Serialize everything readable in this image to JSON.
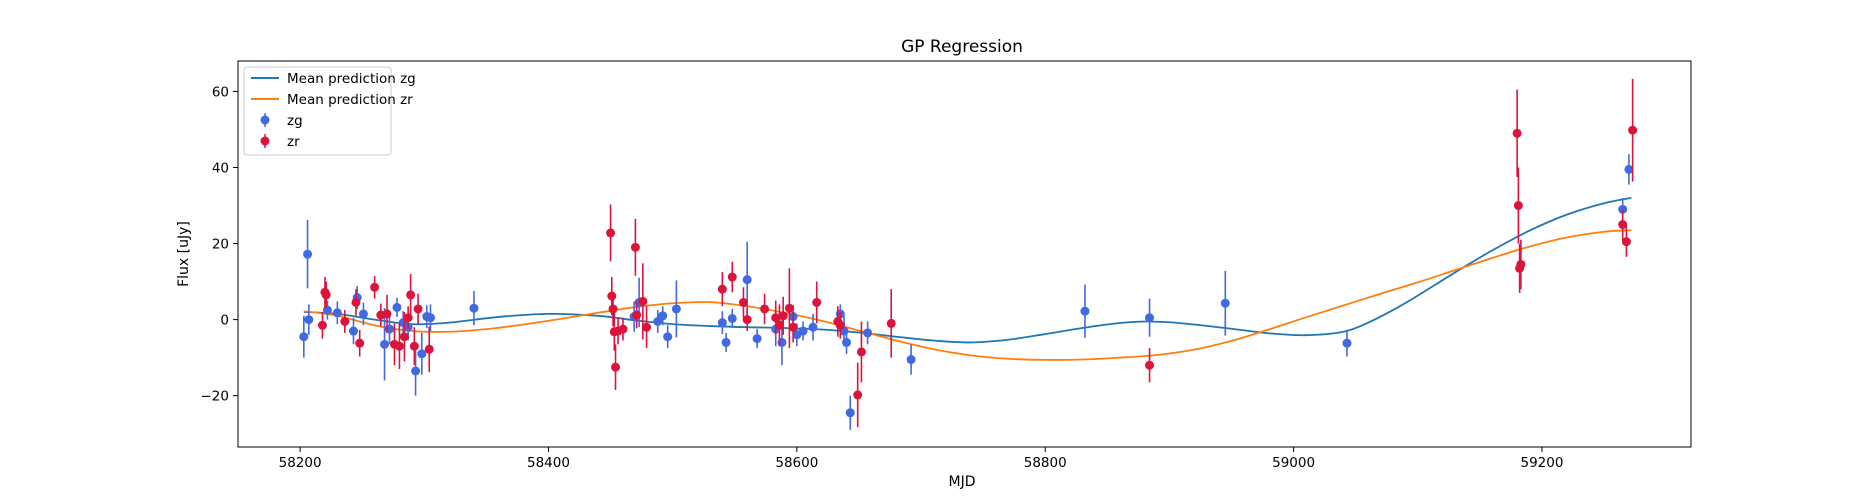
{
  "chart_data": {
    "type": "scatter",
    "title": "GP Regression",
    "xlabel": "MJD",
    "ylabel": "Flux [uJy]",
    "xlim": [
      58150,
      59320
    ],
    "ylim": [
      -33.5,
      68
    ],
    "xticks": [
      58200,
      58400,
      58600,
      58800,
      59000,
      59200
    ],
    "yticks": [
      -20,
      0,
      20,
      40,
      60
    ],
    "grid": false,
    "legend_position": "top-left",
    "lines": [
      {
        "name": "Mean prediction zg",
        "color": "#1f77b4",
        "x": [
          58203,
          58230,
          58260,
          58290,
          58320,
          58360,
          58400,
          58440,
          58470,
          58500,
          58530,
          58560,
          58590,
          58620,
          58650,
          58680,
          58710,
          58740,
          58770,
          58800,
          58830,
          58860,
          58880,
          58900,
          58920,
          58950,
          58980,
          59010,
          59040,
          59060,
          59080,
          59100,
          59130,
          59160,
          59190,
          59220,
          59250,
          59272
        ],
        "y": [
          2.0,
          1.5,
          0.0,
          -1.2,
          -0.8,
          0.7,
          1.5,
          1.0,
          -0.2,
          -1.2,
          -1.7,
          -2.0,
          -2.2,
          -2.6,
          -3.4,
          -4.5,
          -5.5,
          -6.0,
          -5.3,
          -3.8,
          -2.2,
          -0.9,
          -0.5,
          -0.7,
          -1.3,
          -2.4,
          -3.6,
          -4.1,
          -3.2,
          -0.8,
          2.5,
          6.3,
          12.4,
          18.2,
          23.4,
          27.6,
          30.6,
          32.0
        ]
      },
      {
        "name": "Mean prediction zr",
        "color": "#ff7f0e",
        "x": [
          58203,
          58230,
          58260,
          58290,
          58320,
          58350,
          58380,
          58410,
          58440,
          58470,
          58500,
          58530,
          58560,
          58590,
          58620,
          58650,
          58680,
          58710,
          58740,
          58770,
          58800,
          58830,
          58860,
          58890,
          58920,
          58950,
          58980,
          59010,
          59040,
          59070,
          59100,
          59130,
          59160,
          59190,
          59220,
          59250,
          59272
        ],
        "y": [
          2.2,
          1.0,
          -1.5,
          -3.0,
          -3.2,
          -2.5,
          -1.3,
          0.2,
          1.8,
          3.3,
          4.3,
          4.6,
          3.5,
          1.8,
          -0.3,
          -2.9,
          -5.5,
          -7.8,
          -9.4,
          -10.3,
          -10.6,
          -10.5,
          -10.0,
          -9.3,
          -7.9,
          -5.6,
          -2.6,
          0.6,
          3.7,
          6.8,
          9.8,
          13.0,
          16.2,
          19.2,
          21.6,
          23.1,
          23.5
        ]
      }
    ],
    "series": [
      {
        "name": "zg",
        "color": "#4169e1",
        "points": [
          [
            58203,
            -4.5,
            5.5
          ],
          [
            58206,
            17.2,
            9.0
          ],
          [
            58207,
            0.0,
            4.0
          ],
          [
            58222,
            2.5,
            2.5
          ],
          [
            58230,
            1.8,
            3.0
          ],
          [
            58243,
            -3.0,
            3.5
          ],
          [
            58246,
            5.8,
            3.0
          ],
          [
            58251,
            1.5,
            3.0
          ],
          [
            58268,
            -6.5,
            9.5
          ],
          [
            58272,
            -2.5,
            4.0
          ],
          [
            58278,
            3.2,
            2.5
          ],
          [
            58283,
            -0.8,
            3.0
          ],
          [
            58287,
            -2.0,
            3.5
          ],
          [
            58293,
            -13.5,
            6.5
          ],
          [
            58298,
            -9.0,
            5.5
          ],
          [
            58302,
            0.8,
            3.0
          ],
          [
            58305,
            0.5,
            3.5
          ],
          [
            58340,
            3.0,
            4.5
          ],
          [
            58469,
            0.8,
            4.0
          ],
          [
            58473,
            4.5,
            6.5
          ],
          [
            58488,
            -0.5,
            3.0
          ],
          [
            58492,
            1.0,
            2.5
          ],
          [
            58496,
            -4.5,
            3.0
          ],
          [
            58503,
            2.8,
            7.5
          ],
          [
            58540,
            -0.8,
            3.0
          ],
          [
            58543,
            -6.0,
            2.5
          ],
          [
            58548,
            0.3,
            2.5
          ],
          [
            58560,
            10.5,
            10.0
          ],
          [
            58568,
            -5.0,
            2.5
          ],
          [
            58583,
            -2.5,
            4.5
          ],
          [
            58588,
            -6.0,
            6.0
          ],
          [
            58597,
            0.8,
            3.0
          ],
          [
            58600,
            -4.0,
            3.0
          ],
          [
            58605,
            -3.0,
            2.5
          ],
          [
            58613,
            -2.0,
            3.5
          ],
          [
            58635,
            1.5,
            2.5
          ],
          [
            58638,
            -3.0,
            4.0
          ],
          [
            58640,
            -6.0,
            3.0
          ],
          [
            58643,
            -24.5,
            4.5
          ],
          [
            58657,
            -3.5,
            3.0
          ],
          [
            58692,
            -10.5,
            4.0
          ],
          [
            58832,
            2.2,
            7.0
          ],
          [
            58884,
            0.5,
            5.0
          ],
          [
            58945,
            4.3,
            8.5
          ],
          [
            59043,
            -6.2,
            3.5
          ],
          [
            59265,
            29.0,
            3.0
          ],
          [
            59270,
            39.5,
            4.0
          ]
        ]
      },
      {
        "name": "zr",
        "color": "#dc143c",
        "points": [
          [
            58218,
            -1.5,
            3.5
          ],
          [
            58220,
            7.2,
            4.0
          ],
          [
            58221,
            6.5,
            3.5
          ],
          [
            58236,
            -0.5,
            3.0
          ],
          [
            58245,
            4.5,
            3.5
          ],
          [
            58248,
            -6.2,
            3.5
          ],
          [
            58260,
            8.5,
            3.0
          ],
          [
            58265,
            1.2,
            3.0
          ],
          [
            58270,
            1.5,
            5.0
          ],
          [
            58276,
            -6.5,
            5.5
          ],
          [
            58280,
            -7.0,
            6.0
          ],
          [
            58284,
            -4.5,
            6.5
          ],
          [
            58287,
            0.5,
            3.0
          ],
          [
            58289,
            6.5,
            5.5
          ],
          [
            58292,
            -7.0,
            5.0
          ],
          [
            58295,
            2.8,
            4.0
          ],
          [
            58304,
            -7.8,
            6.0
          ],
          [
            58450,
            22.8,
            7.5
          ],
          [
            58451,
            6.2,
            5.0
          ],
          [
            58452,
            2.8,
            4.5
          ],
          [
            58453,
            -3.2,
            5.0
          ],
          [
            58454,
            -12.5,
            6.0
          ],
          [
            58456,
            -3.0,
            3.5
          ],
          [
            58460,
            -2.5,
            3.0
          ],
          [
            58470,
            19.0,
            7.5
          ],
          [
            58471,
            1.2,
            3.5
          ],
          [
            58476,
            4.8,
            10.0
          ],
          [
            58479,
            -2.0,
            5.5
          ],
          [
            58540,
            8.0,
            4.5
          ],
          [
            58548,
            11.2,
            4.0
          ],
          [
            58557,
            4.5,
            4.0
          ],
          [
            58560,
            0.0,
            3.0
          ],
          [
            58574,
            2.8,
            4.0
          ],
          [
            58583,
            0.5,
            4.5
          ],
          [
            58586,
            -1.5,
            5.5
          ],
          [
            58589,
            1.0,
            5.0
          ],
          [
            58594,
            3.0,
            10.5
          ],
          [
            58597,
            -2.0,
            4.0
          ],
          [
            58616,
            4.5,
            5.5
          ],
          [
            58633,
            -0.5,
            4.0
          ],
          [
            58635,
            -1.5,
            3.5
          ],
          [
            58649,
            -19.8,
            8.5
          ],
          [
            58652,
            -8.5,
            8.0
          ],
          [
            58676,
            -1.0,
            9.0
          ],
          [
            58884,
            -12.0,
            4.5
          ],
          [
            59180,
            49.0,
            11.5
          ],
          [
            59181,
            30.0,
            10.0
          ],
          [
            59182,
            13.5,
            6.5
          ],
          [
            59183,
            14.5,
            6.5
          ],
          [
            59265,
            25.0,
            4.0
          ],
          [
            59268,
            20.5,
            4.0
          ],
          [
            59273,
            49.8,
            13.5
          ]
        ]
      }
    ]
  }
}
